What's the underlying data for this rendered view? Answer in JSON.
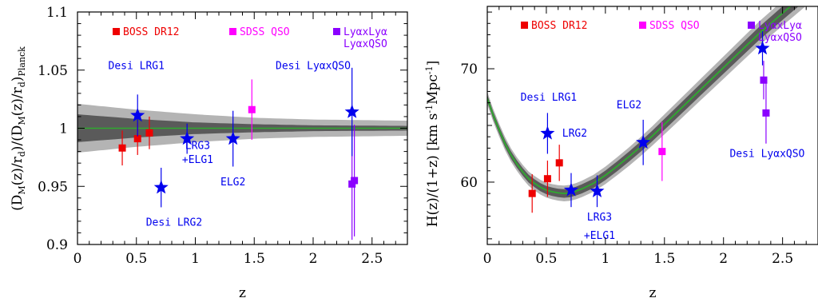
{
  "chart_data": [
    {
      "type": "scatter",
      "xlabel": "z",
      "ylabel_main": "(D",
      "ylabel_parts": [
        "M",
        "(z)/r",
        "d",
        ")/(D",
        "M",
        "(z)/r",
        "d",
        ")",
        "Planck"
      ],
      "xlim": [
        0,
        2.8
      ],
      "ylim": [
        0.9,
        1.1
      ],
      "xticks": [
        "0",
        "0.5",
        "1",
        "1.5",
        "2",
        "2.5"
      ],
      "xtick_values": [
        0,
        0.5,
        1,
        1.5,
        2,
        2.5
      ],
      "yticks": [
        "0.9",
        "0.95",
        "1",
        "1.05",
        "1.1"
      ],
      "ytick_values": [
        0.9,
        0.95,
        1.0,
        1.05,
        1.1
      ],
      "reference_line": 1.0,
      "bands": {
        "light": {
          "z": [
            0,
            0.5,
            1.0,
            1.5,
            2.0,
            2.8
          ],
          "half_width": [
            0.021,
            0.016,
            0.012,
            0.009,
            0.0075,
            0.0065
          ]
        },
        "dark": {
          "z": [
            0,
            0.5,
            1.0,
            1.5,
            2.0,
            2.8
          ],
          "half_width": [
            0.012,
            0.008,
            0.005,
            0.0035,
            0.0025,
            0.002
          ]
        }
      },
      "legend": [
        {
          "label": "BOSS DR12",
          "color": "#ee0000"
        },
        {
          "label": "SDSS QSO",
          "color": "#ff00ff"
        },
        {
          "label": "LyαxLyα",
          "label2": "LyαxQSO",
          "color": "#8b00ff"
        }
      ],
      "series": [
        {
          "name": "BOSS DR12",
          "marker": "square",
          "color": "#ee0000",
          "points": [
            {
              "x": 0.38,
              "y": 0.983,
              "err": 0.015
            },
            {
              "x": 0.51,
              "y": 0.991,
              "err": 0.014
            },
            {
              "x": 0.61,
              "y": 0.996,
              "err": 0.014
            }
          ]
        },
        {
          "name": "SDSS QSO",
          "marker": "square",
          "color": "#ff00ff",
          "points": [
            {
              "x": 1.48,
              "y": 1.016,
              "err": 0.026
            }
          ]
        },
        {
          "name": "Lyα",
          "marker": "square",
          "color": "#8b00ff",
          "points": [
            {
              "x": 2.33,
              "y": 0.952,
              "err": 0.048
            },
            {
              "x": 2.35,
              "y": 0.955,
              "err": 0.048
            }
          ]
        },
        {
          "name": "DESI",
          "marker": "star",
          "color": "#0000ee",
          "points": [
            {
              "x": 0.51,
              "y": 1.011,
              "err": 0.018
            },
            {
              "x": 0.71,
              "y": 0.949,
              "err": 0.017
            },
            {
              "x": 0.93,
              "y": 0.991,
              "err": 0.013
            },
            {
              "x": 1.32,
              "y": 0.991,
              "err": 0.024
            },
            {
              "x": 2.33,
              "y": 1.014,
              "err": 0.038
            }
          ]
        }
      ],
      "annotations": [
        {
          "text": "Desi LRG1",
          "color": "#0000ee",
          "x": 0.5,
          "y": 1.051
        },
        {
          "text": "LRG3",
          "color": "#0000ee",
          "x": 1.02,
          "y": 0.982
        },
        {
          "text": "+ELG1",
          "color": "#0000ee",
          "x": 1.02,
          "y": 0.97
        },
        {
          "text": "Desi LRG2",
          "color": "#0000ee",
          "x": 0.82,
          "y": 0.916
        },
        {
          "text": "ELG2",
          "color": "#0000ee",
          "x": 1.32,
          "y": 0.951
        },
        {
          "text": "Desi LyαxQSO",
          "color": "#0000ee",
          "x": 2.0,
          "y": 1.051
        }
      ]
    },
    {
      "type": "scatter",
      "xlabel": "z",
      "ylabel_main": "H(z)/(1+z)  [km s",
      "ylabel_sup1": "-1",
      "ylabel_mid": "Mpc",
      "ylabel_sup2": "-1",
      "ylabel_end": "]",
      "xlim": [
        0,
        2.8
      ],
      "ylim": [
        54.5,
        75.5
      ],
      "xticks": [
        "0",
        "0.5",
        "1",
        "1.5",
        "2",
        "2.5"
      ],
      "xtick_values": [
        0,
        0.5,
        1,
        1.5,
        2,
        2.5
      ],
      "yticks": [
        "60",
        "70"
      ],
      "ytick_values": [
        60,
        70
      ],
      "model_curve": {
        "z": [
          0,
          0.05,
          0.1,
          0.15,
          0.2,
          0.25,
          0.3,
          0.35,
          0.4,
          0.45,
          0.5,
          0.55,
          0.6,
          0.65,
          0.7,
          0.75,
          0.8,
          0.9,
          1.0,
          1.1,
          1.2,
          1.3,
          1.4,
          1.5,
          1.6,
          1.7,
          1.8,
          1.9,
          2.0,
          2.1,
          2.2,
          2.3,
          2.4,
          2.5,
          2.6,
          2.7,
          2.8
        ],
        "h": [
          67.4,
          65.9,
          64.6,
          63.4,
          62.4,
          61.6,
          60.9,
          60.3,
          59.9,
          59.55,
          59.3,
          59.15,
          59.05,
          59.0,
          59.05,
          59.2,
          59.4,
          59.9,
          60.6,
          61.4,
          62.25,
          63.15,
          64.1,
          65.1,
          66.1,
          67.1,
          68.1,
          69.1,
          70.1,
          71.1,
          72.1,
          73.1,
          74.0,
          74.9,
          75.8,
          76.7,
          77.6
        ]
      },
      "band": {
        "half_width_light": 0.55,
        "half_width_dark": 0.3
      },
      "legend": [
        {
          "label": "BOSS DR12",
          "color": "#ee0000"
        },
        {
          "label": "SDSS QSO",
          "color": "#ff00ff"
        },
        {
          "label": "LyαxLyα",
          "label2": "LyαxQSO",
          "color": "#8b00ff"
        }
      ],
      "series": [
        {
          "name": "BOSS DR12",
          "marker": "square",
          "color": "#ee0000",
          "points": [
            {
              "x": 0.38,
              "y": 59.0,
              "err": 1.7
            },
            {
              "x": 0.51,
              "y": 60.3,
              "err": 1.6
            },
            {
              "x": 0.61,
              "y": 61.7,
              "err": 1.6
            }
          ]
        },
        {
          "name": "SDSS QSO",
          "marker": "square",
          "color": "#ff00ff",
          "points": [
            {
              "x": 1.48,
              "y": 62.7,
              "err": 2.6
            }
          ]
        },
        {
          "name": "Lyα",
          "marker": "square",
          "color": "#8b00ff",
          "points": [
            {
              "x": 2.34,
              "y": 69.0,
              "err": 1.7
            },
            {
              "x": 2.36,
              "y": 66.1,
              "err": 2.7
            }
          ]
        },
        {
          "name": "DESI",
          "marker": "star",
          "color": "#0000ee",
          "points": [
            {
              "x": 0.51,
              "y": 64.3,
              "err": 1.8
            },
            {
              "x": 0.71,
              "y": 59.3,
              "err": 1.5
            },
            {
              "x": 0.93,
              "y": 59.2,
              "err": 1.4
            },
            {
              "x": 1.32,
              "y": 63.5,
              "err": 2.0
            },
            {
              "x": 2.33,
              "y": 71.8,
              "err": 1.5
            }
          ]
        }
      ],
      "annotations": [
        {
          "text": "Desi LRG1",
          "color": "#0000ee",
          "x": 0.52,
          "y": 67.2
        },
        {
          "text": "LRG2",
          "color": "#0000ee",
          "x": 0.74,
          "y": 64.0
        },
        {
          "text": "ELG2",
          "color": "#0000ee",
          "x": 1.2,
          "y": 66.5
        },
        {
          "text": "LRG3",
          "color": "#0000ee",
          "x": 0.95,
          "y": 56.6
        },
        {
          "text": "+ELG1",
          "color": "#0000ee",
          "x": 0.95,
          "y": 55.0
        },
        {
          "text": "Desi LyαxQSO",
          "color": "#0000ee",
          "x": 2.37,
          "y": 62.2
        }
      ]
    }
  ]
}
